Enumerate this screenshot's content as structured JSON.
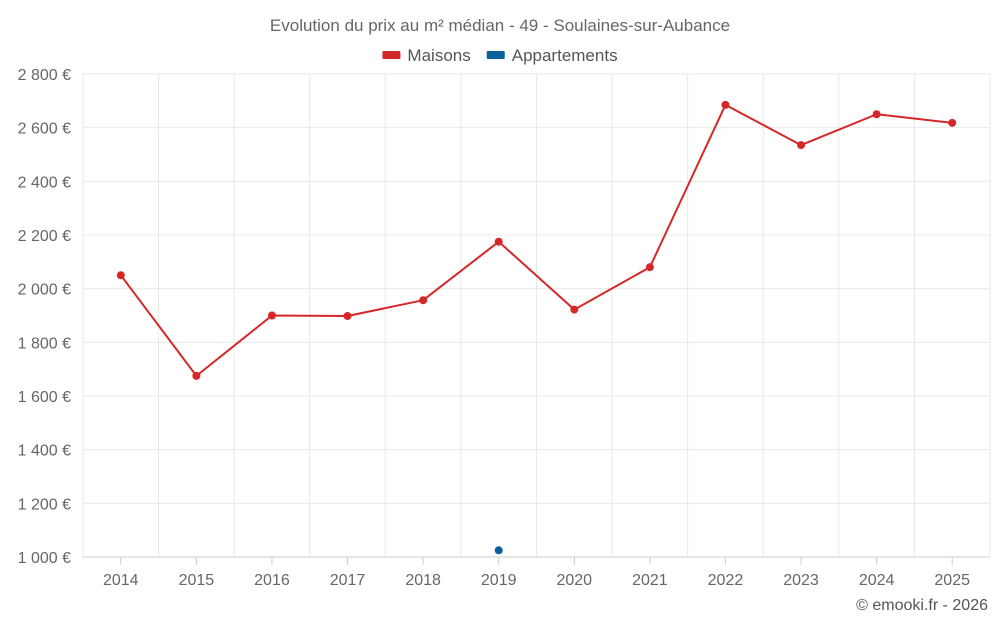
{
  "chart_data": {
    "type": "line",
    "title": "Evolution du prix au m² médian - 49 - Soulaines-sur-Aubance",
    "xlabel": "",
    "ylabel": "",
    "categories": [
      "2014",
      "2015",
      "2016",
      "2017",
      "2018",
      "2019",
      "2020",
      "2021",
      "2022",
      "2023",
      "2024",
      "2025"
    ],
    "ylim": [
      1000,
      2800
    ],
    "yticks": [
      1000,
      1200,
      1400,
      1600,
      1800,
      2000,
      2200,
      2400,
      2600,
      2800
    ],
    "ytick_labels": [
      "1 000 €",
      "1 200 €",
      "1 400 €",
      "1 600 €",
      "1 800 €",
      "2 000 €",
      "2 200 €",
      "2 400 €",
      "2 600 €",
      "2 800 €"
    ],
    "grid": true,
    "legend_position": "top-center",
    "series": [
      {
        "name": "Maisons",
        "color": "#d62728",
        "values": [
          2050,
          1675,
          1900,
          1898,
          1957,
          2175,
          1922,
          2080,
          2685,
          2535,
          2650,
          2618
        ]
      },
      {
        "name": "Appartements",
        "color": "#08609c",
        "values": [
          null,
          null,
          null,
          null,
          null,
          1025,
          null,
          null,
          null,
          null,
          null,
          null
        ]
      }
    ]
  },
  "credit": "© emooki.fr - 2026"
}
